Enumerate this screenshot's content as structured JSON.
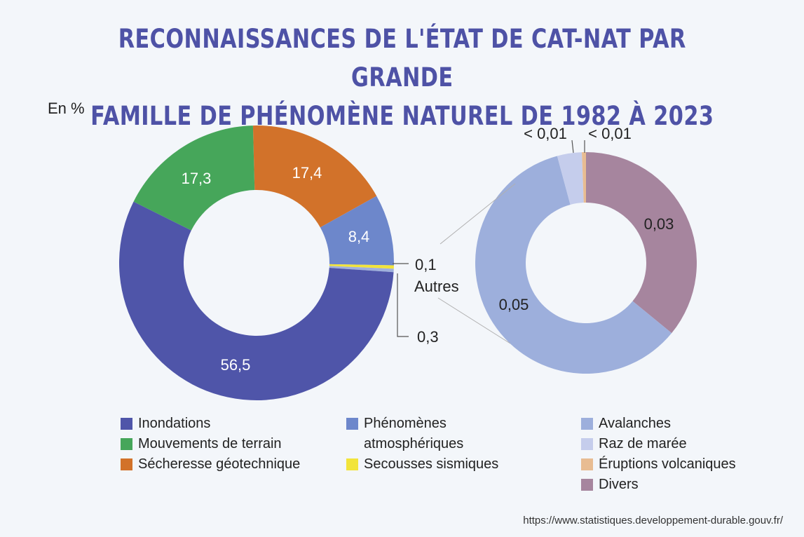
{
  "title_line1": "RECONNAISSANCES DE L'ÉTAT DE CAT-NAT PAR GRANDE",
  "title_line2": "FAMILLE DE PHÉNOMÈNE NATUREL DE 1982 À 2023",
  "unit_label": "En %",
  "source": "https://www.statistiques.developpement-durable.gouv.fr/",
  "chart_data": [
    {
      "type": "pie",
      "style": "donut",
      "unit": "%",
      "slices": [
        {
          "name": "Inondations",
          "value": 56.5,
          "label": "56,5",
          "color": "#4f55a9"
        },
        {
          "name": "Mouvements de terrain",
          "value": 17.3,
          "label": "17,3",
          "color": "#46a65a"
        },
        {
          "name": "Sécheresse géotechnique",
          "value": 17.4,
          "label": "17,4",
          "color": "#d2722a"
        },
        {
          "name": "Phénomènes atmosphériques",
          "value": 8.4,
          "label": "8,4",
          "color": "#6d87cb"
        },
        {
          "name": "Secousses sismiques",
          "value": 0.1,
          "label": "0,1",
          "color": "#f2e43a"
        },
        {
          "name": "Autres",
          "value": 0.3,
          "label": "0,3",
          "color": "#9fb0dc"
        }
      ]
    },
    {
      "type": "pie",
      "style": "donut",
      "unit": "%",
      "breakdown_of": "Autres",
      "slices": [
        {
          "name": "Divers",
          "value": 0.03,
          "label": "0,03",
          "color": "#a6859e"
        },
        {
          "name": "Avalanches",
          "value": 0.05,
          "label": "0,05",
          "color": "#9dafdc"
        },
        {
          "name": "Raz de marée",
          "value": 0.003,
          "label": "< 0,01",
          "color": "#c5cdec"
        },
        {
          "name": "Éruptions volcaniques",
          "value": 0.0005,
          "label": "< 0,01",
          "color": "#e8bc92"
        }
      ]
    }
  ],
  "autres_label": "Autres",
  "legend": {
    "col1": [
      {
        "label": "Inondations",
        "color": "#4f55a9"
      },
      {
        "label": "Mouvements de terrain",
        "color": "#46a65a"
      },
      {
        "label": "Sécheresse géotechnique",
        "color": "#d2722a"
      }
    ],
    "col2": [
      {
        "label_line1": "Phénomènes",
        "label_line2": "atmosphériques",
        "color": "#6d87cb"
      },
      {
        "label": "Secousses sismiques",
        "color": "#f2e43a"
      }
    ],
    "col3": [
      {
        "label": "Avalanches",
        "color": "#9dafdc"
      },
      {
        "label": "Raz de marée",
        "color": "#c5cdec"
      },
      {
        "label": "Éruptions volcaniques",
        "color": "#e8bc92"
      },
      {
        "label": "Divers",
        "color": "#a6859e"
      }
    ]
  }
}
